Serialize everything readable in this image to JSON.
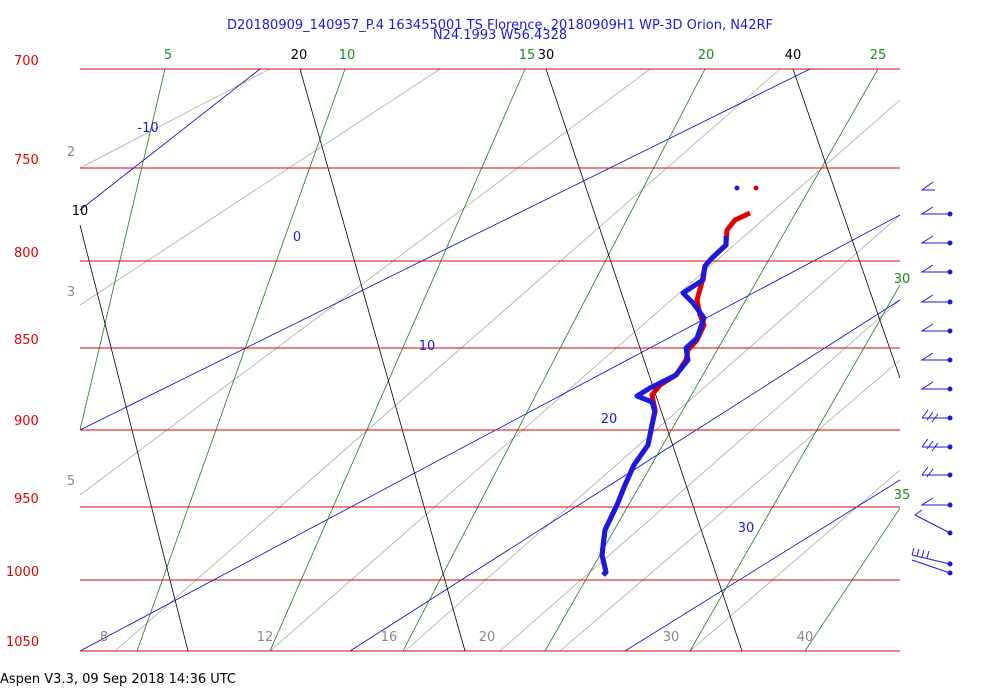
{
  "header": {
    "title": "D20180909_140957_P.4 163455001 TS Florence, 20180909H1 WP-3D Orion, N42RF",
    "subtitle": "N24.1993 W56.4328"
  },
  "footer": "Aspen V3.3, 09 Sep 2018  14:36 UTC",
  "pressure_labels": [
    "700",
    "750",
    "800",
    "850",
    "900",
    "950",
    "1000",
    "1050"
  ],
  "isotherm_labels": [
    "10",
    "20",
    "30",
    "40"
  ],
  "mixing_ratio_labels": [
    "5",
    "10",
    "15",
    "20",
    "25",
    "30",
    "35"
  ],
  "adiabat_labels": [
    "-10",
    "0",
    "10",
    "20",
    "30"
  ],
  "left_gray_labels": [
    "2",
    "3",
    "5"
  ],
  "bottom_gray_labels": [
    "8",
    "12",
    "16",
    "20",
    "30",
    "40"
  ]
}
